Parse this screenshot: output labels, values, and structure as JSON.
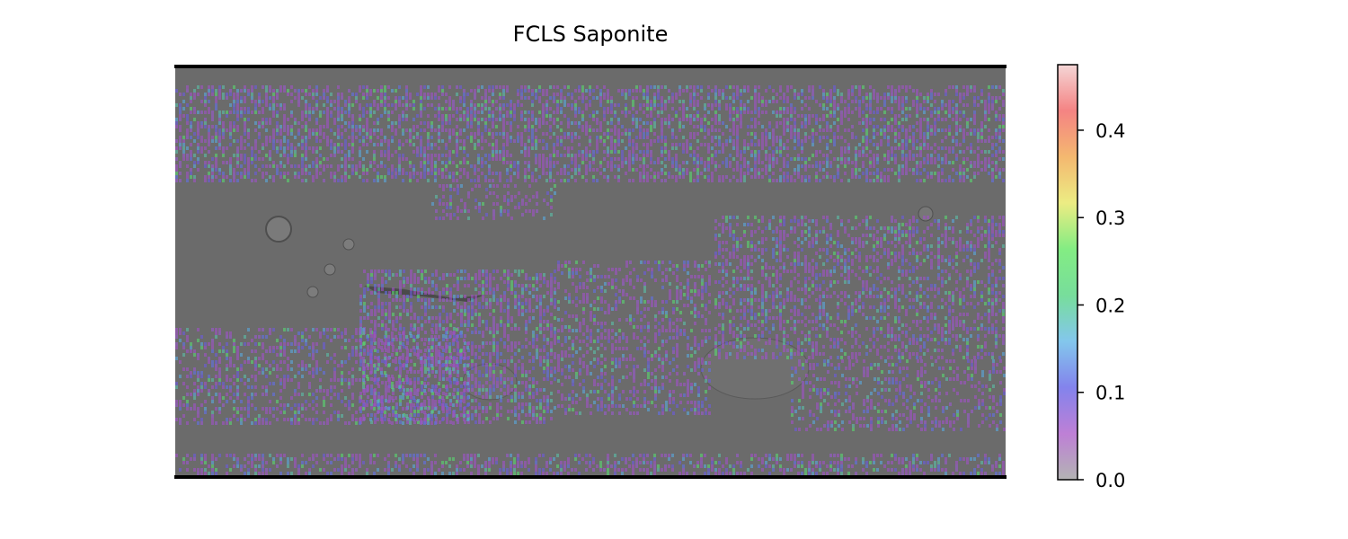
{
  "chart_data": {
    "type": "heatmap",
    "title": "FCLS Saponite",
    "xlabel": "",
    "ylabel": "",
    "colorbar": {
      "vmin": 0.0,
      "vmax": 0.475,
      "ticks": [
        0.0,
        0.1,
        0.2,
        0.3,
        0.4
      ],
      "tick_labels": [
        "0.0",
        "0.1",
        "0.2",
        "0.3",
        "0.4"
      ],
      "colormap": [
        "#9a9a9a",
        "#a855c8",
        "#5a5ae6",
        "#5ab4e6",
        "#4ad27a",
        "#5ae65a",
        "#e6e65a",
        "#f0a040",
        "#f05a5a",
        "#f0c8c8"
      ],
      "alpha": 0.55
    },
    "basemap": {
      "description_kind": "shaded relief (grayscale)",
      "base_color": "#6b6b6b"
    },
    "grid": false
  }
}
